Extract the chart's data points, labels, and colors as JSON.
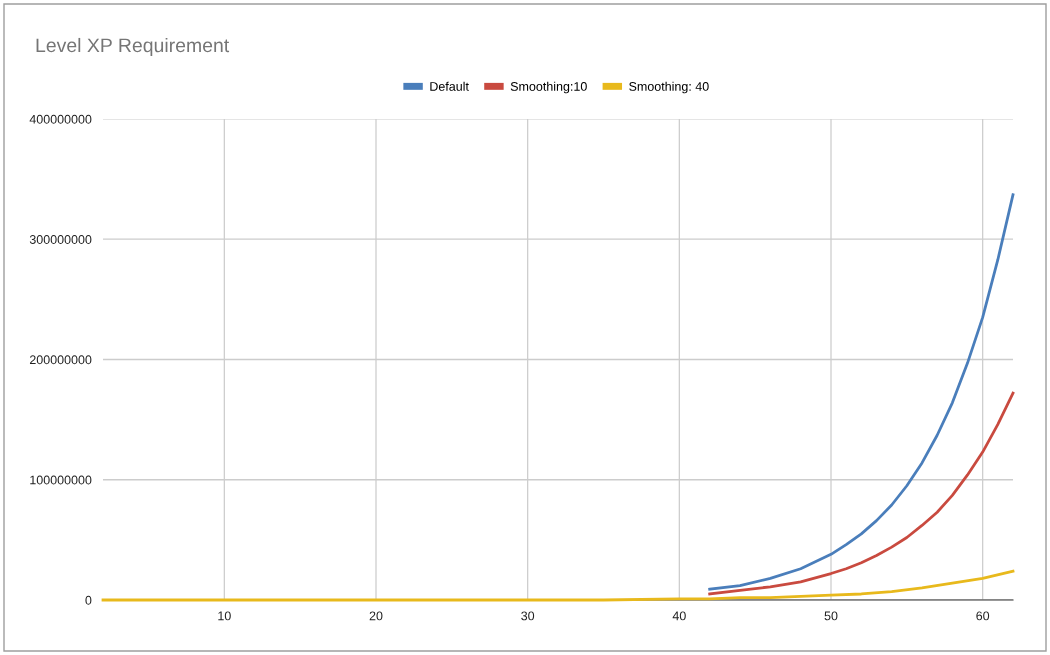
{
  "chart_data": {
    "type": "line",
    "title": "Level XP Requirement",
    "xlim": [
      2,
      62
    ],
    "xticks": [
      10,
      20,
      30,
      40,
      50,
      60
    ],
    "ylim": [
      0,
      400000000
    ],
    "yticks": [
      0,
      100000000,
      200000000,
      300000000,
      400000000
    ],
    "grid": true,
    "legend": "top",
    "marker": "none",
    "line_style": "solid",
    "series": [
      {
        "name": "Default",
        "color": "#4a7ebb",
        "x": [
          42,
          44,
          46,
          48,
          50,
          51,
          52,
          53,
          54,
          55,
          56,
          57,
          58,
          59,
          60,
          61,
          62
        ],
        "values": [
          9000000,
          12000000,
          18000000,
          26000000,
          38000000,
          46000000,
          55000000,
          66000000,
          79000000,
          95000000,
          114000000,
          137000000,
          164000000,
          197000000,
          235000000,
          283000000,
          337000000
        ]
      },
      {
        "name": "Smoothing:10",
        "color": "#c94a3f",
        "x": [
          42,
          44,
          46,
          48,
          50,
          51,
          52,
          53,
          54,
          55,
          56,
          57,
          58,
          59,
          60,
          61,
          62
        ],
        "values": [
          5000000,
          8000000,
          11000000,
          15000000,
          22000000,
          26000000,
          31000000,
          37000000,
          44000000,
          52000000,
          62000000,
          73000000,
          87000000,
          104000000,
          123000000,
          146000000,
          172000000
        ]
      },
      {
        "name": "Smoothing: 40",
        "color": "#e8b91c",
        "x": [
          2,
          10,
          20,
          30,
          35,
          40,
          42,
          44,
          46,
          48,
          50,
          52,
          54,
          56,
          58,
          60,
          62
        ],
        "values": [
          0,
          0,
          0,
          0,
          0,
          1000000,
          1000000,
          2000000,
          2000000,
          3000000,
          4000000,
          5000000,
          7000000,
          10000000,
          14000000,
          18000000,
          24000000
        ]
      }
    ]
  }
}
